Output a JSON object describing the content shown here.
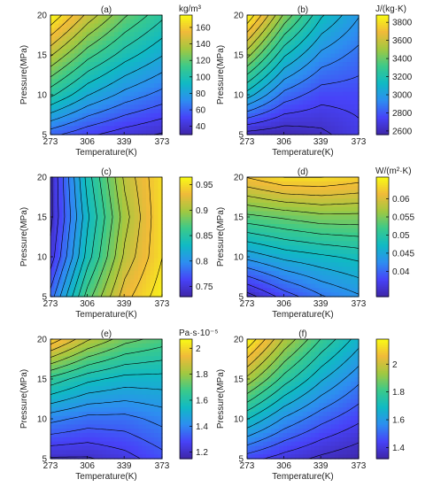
{
  "figure": {
    "x_tick_labels": [
      "273",
      "306",
      "339",
      "373"
    ],
    "y_tick_labels": [
      "5",
      "10",
      "15",
      "20"
    ],
    "xlabel": "Temperature(K)",
    "ylabel": "Pressure(MPa)"
  },
  "colors": {
    "colormap_stops": [
      "#3e26a8",
      "#4743f8",
      "#2d8ef0",
      "#10b9c4",
      "#3bca8a",
      "#a2c840",
      "#f0ba39",
      "#f9fb15"
    ],
    "contour_line": "#000000",
    "axis": "#000000"
  },
  "chart_data": [
    {
      "type": "heatmap",
      "title": "(a)",
      "colorbar_unit": "kg/m³",
      "x": [
        273,
        306,
        339,
        373
      ],
      "y": [
        5,
        10,
        15,
        20
      ],
      "xlim": [
        273,
        373
      ],
      "ylim": [
        5,
        20
      ],
      "colorbar_range": [
        30,
        175
      ],
      "colorbar_ticks": [
        40,
        60,
        80,
        100,
        120,
        140,
        160
      ],
      "z": [
        [
          60,
          50,
          43,
          38
        ],
        [
          105,
          85,
          72,
          63
        ],
        [
          140,
          115,
          98,
          85
        ],
        [
          175,
          145,
          122,
          105
        ]
      ]
    },
    {
      "type": "heatmap",
      "title": "(b)",
      "colorbar_unit": "J/(kg·K)",
      "x": [
        273,
        306,
        339,
        373
      ],
      "y": [
        5,
        10,
        15,
        20
      ],
      "xlim": [
        273,
        373
      ],
      "ylim": [
        5,
        20
      ],
      "colorbar_range": [
        2560,
        3880
      ],
      "colorbar_ticks": [
        2600,
        2800,
        3000,
        3200,
        3400,
        3600,
        3800
      ],
      "z": [
        [
          2600,
          2580,
          2620,
          2700
        ],
        [
          3100,
          2860,
          2760,
          2760
        ],
        [
          3500,
          3150,
          2950,
          2860
        ],
        [
          3880,
          3450,
          3150,
          2980
        ]
      ]
    },
    {
      "type": "heatmap",
      "title": "(c)",
      "colorbar_unit": "",
      "x": [
        273,
        306,
        339,
        373
      ],
      "y": [
        5,
        10,
        15,
        20
      ],
      "xlim": [
        273,
        373
      ],
      "ylim": [
        5,
        20
      ],
      "colorbar_range": [
        0.73,
        0.965
      ],
      "colorbar_ticks": [
        0.75,
        0.8,
        0.85,
        0.9,
        0.95
      ],
      "z": [
        [
          0.78,
          0.87,
          0.93,
          0.96
        ],
        [
          0.75,
          0.84,
          0.91,
          0.95
        ],
        [
          0.74,
          0.83,
          0.9,
          0.95
        ],
        [
          0.74,
          0.84,
          0.91,
          0.95
        ]
      ]
    },
    {
      "type": "heatmap",
      "title": "(d)",
      "colorbar_unit": "W/(m²·K)",
      "x": [
        273,
        306,
        339,
        373
      ],
      "y": [
        5,
        10,
        15,
        20
      ],
      "xlim": [
        273,
        373
      ],
      "ylim": [
        5,
        20
      ],
      "colorbar_range": [
        0.033,
        0.066
      ],
      "colorbar_ticks": [
        0.04,
        0.045,
        0.05,
        0.055,
        0.06
      ],
      "z": [
        [
          0.034,
          0.038,
          0.041,
          0.043
        ],
        [
          0.044,
          0.046,
          0.047,
          0.048
        ],
        [
          0.053,
          0.054,
          0.055,
          0.055
        ],
        [
          0.062,
          0.064,
          0.064,
          0.063
        ]
      ]
    },
    {
      "type": "heatmap",
      "title": "(e)",
      "colorbar_unit": "Pa·s·10⁻⁵",
      "x": [
        273,
        306,
        339,
        373
      ],
      "y": [
        5,
        10,
        15,
        20
      ],
      "xlim": [
        273,
        373
      ],
      "ylim": [
        5,
        20
      ],
      "colorbar_range": [
        1.15,
        2.07
      ],
      "colorbar_ticks": [
        1.2,
        1.4,
        1.6,
        1.8,
        2.0
      ],
      "colorbar_tick_labels": [
        "1.2",
        "1.4",
        "1.6",
        "1.8",
        "2"
      ],
      "z": [
        [
          1.2,
          1.2,
          1.24,
          1.3
        ],
        [
          1.4,
          1.36,
          1.36,
          1.4
        ],
        [
          1.65,
          1.57,
          1.53,
          1.53
        ],
        [
          2.0,
          1.85,
          1.75,
          1.7
        ]
      ]
    },
    {
      "type": "heatmap",
      "title": "(f)",
      "colorbar_unit": "",
      "x": [
        273,
        306,
        339,
        373
      ],
      "y": [
        5,
        10,
        15,
        20
      ],
      "xlim": [
        273,
        373
      ],
      "ylim": [
        5,
        20
      ],
      "colorbar_range": [
        1.32,
        2.18
      ],
      "colorbar_ticks": [
        1.4,
        1.6,
        1.8,
        2.0
      ],
      "colorbar_tick_labels": [
        "1.4",
        "1.6",
        "1.8",
        "2"
      ],
      "z": [
        [
          1.45,
          1.4,
          1.36,
          1.33
        ],
        [
          1.7,
          1.58,
          1.5,
          1.44
        ],
        [
          1.95,
          1.78,
          1.65,
          1.55
        ],
        [
          2.18,
          1.96,
          1.8,
          1.67
        ]
      ]
    }
  ]
}
